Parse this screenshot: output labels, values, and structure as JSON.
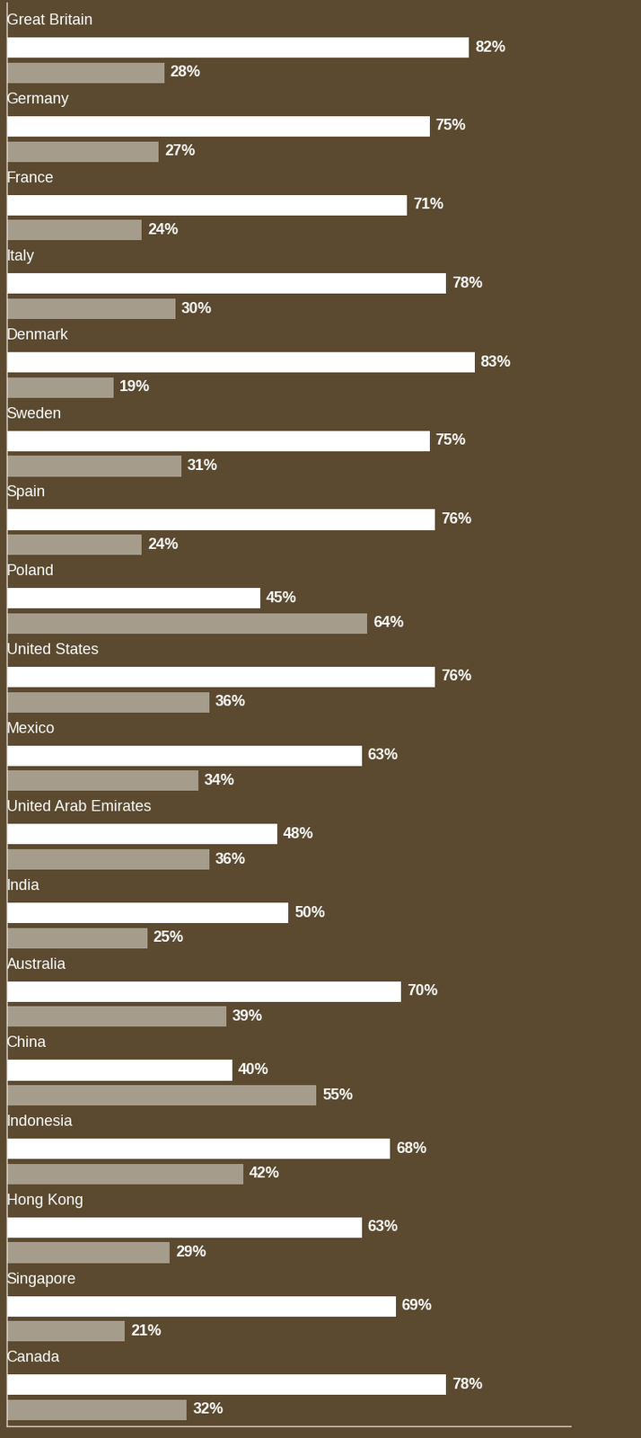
{
  "chart_data": {
    "type": "bar",
    "orientation": "horizontal",
    "categories": [
      "Great Britain",
      "Germany",
      "France",
      "Italy",
      "Denmark",
      "Sweden",
      "Spain",
      "Poland",
      "United States",
      "Mexico",
      "United Arab Emirates",
      "India",
      "Australia",
      "China",
      "Indonesia",
      "Hong Kong",
      "Singapore",
      "Canada"
    ],
    "series": [
      {
        "color": "#ffffff",
        "values": [
          82,
          75,
          71,
          78,
          83,
          75,
          76,
          45,
          76,
          63,
          48,
          50,
          70,
          40,
          68,
          63,
          69,
          78
        ],
        "value_labels": [
          "82%",
          "75%",
          "71%",
          "78%",
          "83%",
          "75%",
          "76%",
          "45%",
          "76%",
          "63%",
          "48%",
          "50%",
          "70%",
          "40%",
          "68%",
          "63%",
          "69%",
          "78%"
        ]
      },
      {
        "color": "#b9b1a3",
        "values": [
          28,
          27,
          24,
          30,
          19,
          31,
          24,
          64,
          36,
          34,
          36,
          25,
          39,
          55,
          42,
          29,
          21,
          32
        ],
        "value_labels": [
          "28%",
          "27%",
          "24%",
          "30%",
          "19%",
          "31%",
          "24%",
          "64%",
          "36%",
          "34%",
          "36%",
          "25%",
          "39%",
          "55%",
          "42%",
          "29%",
          "21%",
          "32%"
        ]
      }
    ],
    "xlim": [
      0,
      100
    ],
    "data_labels": true,
    "tick_labels": false,
    "grid": false
  }
}
